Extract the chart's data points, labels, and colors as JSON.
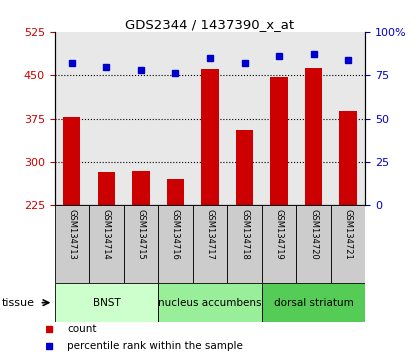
{
  "title": "GDS2344 / 1437390_x_at",
  "samples": [
    "GSM134713",
    "GSM134714",
    "GSM134715",
    "GSM134716",
    "GSM134717",
    "GSM134718",
    "GSM134719",
    "GSM134720",
    "GSM134721"
  ],
  "counts": [
    378,
    282,
    285,
    270,
    460,
    355,
    447,
    463,
    388
  ],
  "percentiles": [
    82,
    80,
    78,
    76,
    85,
    82,
    86,
    87,
    84
  ],
  "ylim_left": [
    225,
    525
  ],
  "yticks_left": [
    225,
    300,
    375,
    450,
    525
  ],
  "ylim_right": [
    0,
    100
  ],
  "yticks_right": [
    0,
    25,
    50,
    75,
    100
  ],
  "bar_color": "#cc0000",
  "dot_color": "#0000cc",
  "bar_width": 0.5,
  "tissue_groups": [
    {
      "label": "BNST",
      "start": 0,
      "end": 3,
      "color": "#ccffcc"
    },
    {
      "label": "nucleus accumbens",
      "start": 3,
      "end": 6,
      "color": "#99ee99"
    },
    {
      "label": "dorsal striatum",
      "start": 6,
      "end": 9,
      "color": "#55cc55"
    }
  ],
  "tissue_label": "tissue",
  "legend_count_label": "count",
  "legend_pct_label": "percentile rank within the sample",
  "bar_color_legend": "#cc0000",
  "dot_color_legend": "#0000cc",
  "grid_yticks": [
    300,
    375,
    450
  ],
  "axis_bg": "#e8e8e8",
  "left_tick_color": "#cc0000",
  "right_tick_color": "#0000cc",
  "sample_box_color": "#cccccc"
}
